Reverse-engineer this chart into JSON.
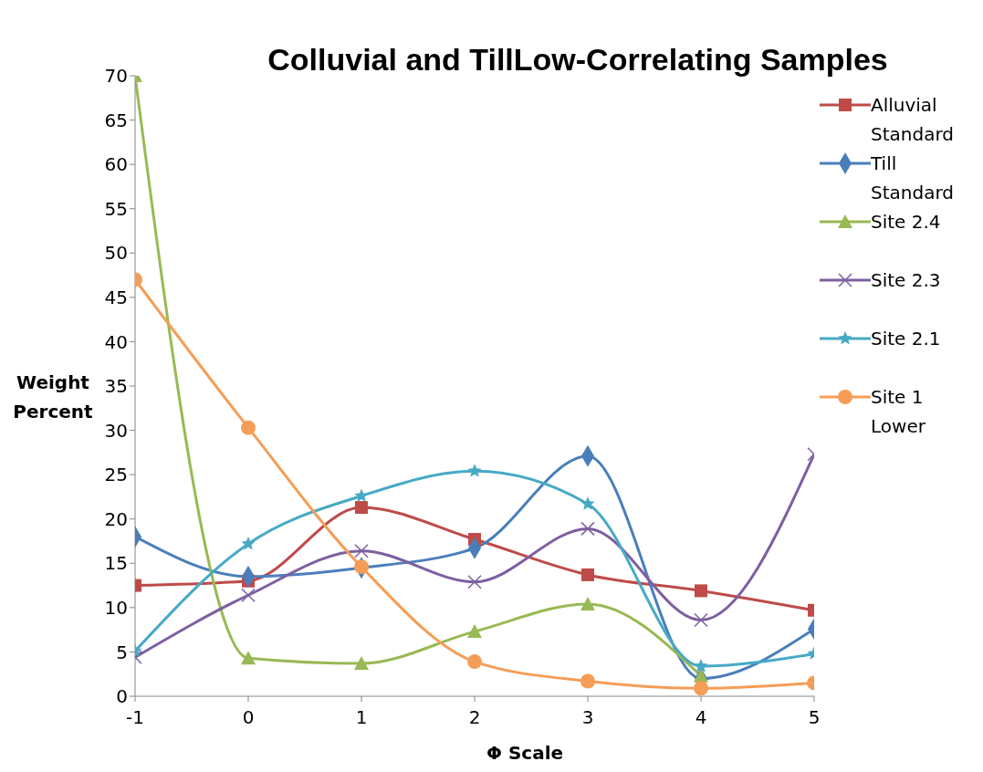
{
  "chart_data": {
    "type": "line",
    "title": "Colluvial and TillLow-Correlating Samples",
    "xlabel": "Φ Scale",
    "ylabel": "Weight Percent",
    "x": [
      -1,
      0,
      1,
      2,
      3,
      4,
      5
    ],
    "series": [
      {
        "name": "Alluvial Standard",
        "color": "#be4b48",
        "marker": "square",
        "values": [
          12.5,
          13,
          21.3,
          17.7,
          13.7,
          11.9,
          9.7
        ]
      },
      {
        "name": "Till Standard",
        "color": "#4a7ebb",
        "marker": "diamond",
        "values": [
          18,
          13.5,
          14.5,
          16.7,
          27.1,
          2,
          7.6
        ]
      },
      {
        "name": "Site 2.4",
        "color": "#98b954",
        "marker": "triangle",
        "values": [
          70,
          4.3,
          3.7,
          7.3,
          10.4,
          2.3,
          null
        ]
      },
      {
        "name": "Site 2.3",
        "color": "#7d5fa0",
        "marker": "cross",
        "values": [
          4.4,
          11.4,
          16.4,
          12.9,
          18.9,
          8.6,
          27.3
        ]
      },
      {
        "name": "Site 2.1",
        "color": "#46aac5",
        "marker": "star",
        "values": [
          5.1,
          17.2,
          22.6,
          25.4,
          21.7,
          3.4,
          4.8
        ]
      },
      {
        "name": "Site 1 Lower",
        "color": "#f59d56",
        "marker": "circle",
        "values": [
          47,
          30.3,
          14.6,
          3.9,
          1.7,
          0.9,
          1.5
        ]
      }
    ],
    "xlim": [
      -1,
      5
    ],
    "xticks": [
      -1,
      0,
      1,
      2,
      3,
      4,
      5
    ],
    "ylim": [
      0,
      70
    ],
    "yticks": [
      0,
      5,
      10,
      15,
      20,
      25,
      30,
      35,
      40,
      45,
      50,
      55,
      60,
      65,
      70
    ],
    "grid": false,
    "legend": "top right",
    "line_style": "solid"
  }
}
